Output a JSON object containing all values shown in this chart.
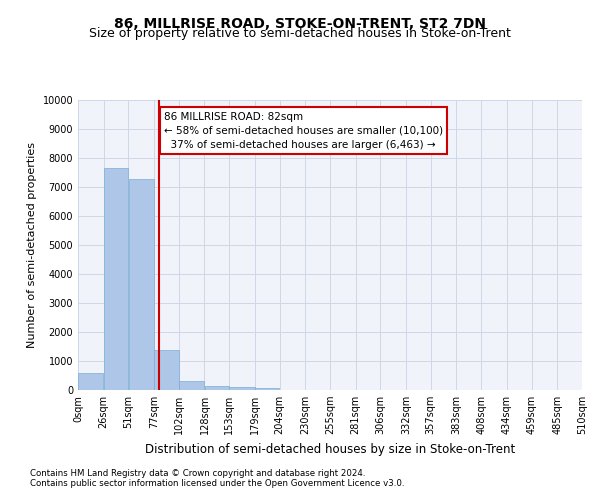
{
  "title": "86, MILLRISE ROAD, STOKE-ON-TRENT, ST2 7DN",
  "subtitle": "Size of property relative to semi-detached houses in Stoke-on-Trent",
  "xlabel": "Distribution of semi-detached houses by size in Stoke-on-Trent",
  "ylabel": "Number of semi-detached properties",
  "footnote1": "Contains HM Land Registry data © Crown copyright and database right 2024.",
  "footnote2": "Contains public sector information licensed under the Open Government Licence v3.0.",
  "bar_values": [
    570,
    7650,
    7280,
    1370,
    320,
    145,
    115,
    80,
    0,
    0,
    0,
    0,
    0,
    0,
    0,
    0,
    0,
    0,
    0,
    0
  ],
  "bar_edges": [
    0,
    26,
    51,
    77,
    102,
    128,
    153,
    179,
    204,
    230,
    255,
    281,
    306,
    332,
    357,
    383,
    408,
    434,
    459,
    485,
    510
  ],
  "x_tick_labels": [
    "0sqm",
    "26sqm",
    "51sqm",
    "77sqm",
    "102sqm",
    "128sqm",
    "153sqm",
    "179sqm",
    "204sqm",
    "230sqm",
    "255sqm",
    "281sqm",
    "306sqm",
    "332sqm",
    "357sqm",
    "383sqm",
    "408sqm",
    "434sqm",
    "459sqm",
    "485sqm",
    "510sqm"
  ],
  "ylim": [
    0,
    10000
  ],
  "yticks": [
    0,
    1000,
    2000,
    3000,
    4000,
    5000,
    6000,
    7000,
    8000,
    9000,
    10000
  ],
  "property_size": 82,
  "property_label": "86 MILLRISE ROAD: 82sqm",
  "smaller_pct": 58,
  "smaller_count": 10100,
  "larger_pct": 37,
  "larger_count": 6463,
  "bar_color": "#aec6e8",
  "bar_edge_color": "#7aadd4",
  "vline_color": "#cc0000",
  "annotation_box_color": "#cc0000",
  "grid_color": "#d0d8e8",
  "background_color": "#f0f4fa",
  "title_fontsize": 10,
  "subtitle_fontsize": 9,
  "tick_fontsize": 7,
  "ylabel_fontsize": 8,
  "xlabel_fontsize": 8.5,
  "annot_fontsize": 7.5
}
